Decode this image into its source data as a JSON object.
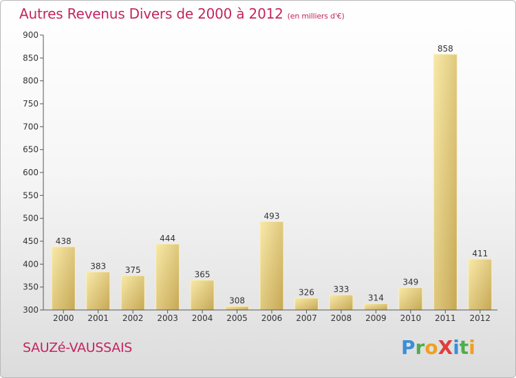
{
  "title": {
    "main": "Autres Revenus Divers de 2000 à 2012",
    "unit": "(en milliers d'€)"
  },
  "location": "SAUZé-VAUSSAIS",
  "logo": {
    "text": "ProXiti",
    "letters": [
      {
        "ch": "P",
        "color": "#3a8fd8"
      },
      {
        "ch": "r",
        "color": "#4cae4c"
      },
      {
        "ch": "o",
        "color": "#f0a020"
      },
      {
        "ch": "X",
        "color": "#e23c3c"
      },
      {
        "ch": "i",
        "color": "#3a8fd8"
      },
      {
        "ch": "t",
        "color": "#4cae4c"
      },
      {
        "ch": "i",
        "color": "#f0a020"
      }
    ]
  },
  "colors": {
    "accent": "#c4245f",
    "bar_light": "#f6e4a0",
    "bar_dark": "#c9ab5a"
  },
  "chart_data": {
    "type": "bar",
    "categories": [
      "2000",
      "2001",
      "2002",
      "2003",
      "2004",
      "2005",
      "2006",
      "2007",
      "2008",
      "2009",
      "2010",
      "2011",
      "2012"
    ],
    "values": [
      438,
      383,
      375,
      444,
      365,
      308,
      493,
      326,
      333,
      314,
      349,
      858,
      411
    ],
    "title": "Autres Revenus Divers de 2000 à 2012",
    "xlabel": "",
    "ylabel": "",
    "ylim": [
      300,
      900
    ],
    "yticks": [
      300,
      350,
      400,
      450,
      500,
      550,
      600,
      650,
      700,
      750,
      800,
      850,
      900
    ],
    "grid": false,
    "data_labels": true
  }
}
